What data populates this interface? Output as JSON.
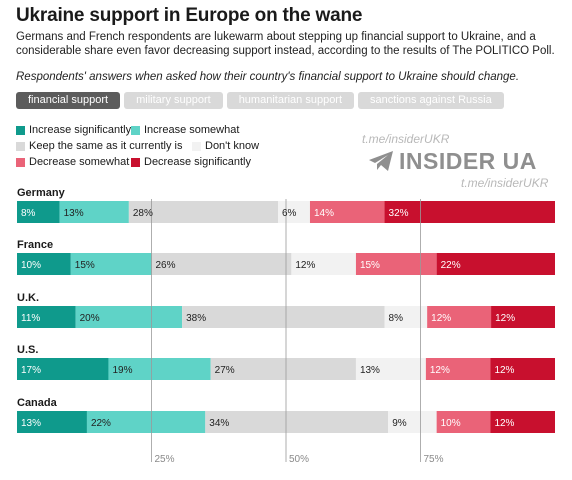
{
  "title": "Ukraine support in Europe on the wane",
  "subtitle": "Germans and French respondents are lukewarm about stepping up financial support to Ukraine, and a considerable share even favor decreasing support instead, according to the results of The POLITICO Poll.",
  "note": "Respondents' answers when asked how their country's financial support to Ukraine should change.",
  "tabs": [
    {
      "label": "financial support",
      "active": true
    },
    {
      "label": "military support",
      "active": false
    },
    {
      "label": "humanitarian support",
      "active": false
    },
    {
      "label": "sanctions against Russia",
      "active": false
    }
  ],
  "watermark": {
    "handle": "t.me/insiderUKR",
    "brand": "INSIDER UA",
    "icon": "telegram-icon"
  },
  "chart_data": {
    "type": "bar",
    "orientation": "horizontal",
    "stacked": true,
    "categories": [
      "Germany",
      "France",
      "U.K.",
      "U.S.",
      "Canada"
    ],
    "series": [
      {
        "name": "Increase significantly",
        "color": "#0f9a8c",
        "values": [
          8,
          10,
          11,
          17,
          13
        ]
      },
      {
        "name": "Increase somewhat",
        "color": "#5fd3c7",
        "values": [
          13,
          15,
          20,
          19,
          22
        ]
      },
      {
        "name": "Keep the same as it currently is",
        "color": "#d9d9d9",
        "values": [
          28,
          26,
          38,
          27,
          34
        ]
      },
      {
        "name": "Don't know",
        "color": "#f2f2f2",
        "values": [
          6,
          12,
          8,
          13,
          9
        ]
      },
      {
        "name": "Decrease somewhat",
        "color": "#ea6378",
        "values": [
          14,
          15,
          12,
          12,
          10
        ]
      },
      {
        "name": "Decrease significantly",
        "color": "#c8102e",
        "values": [
          32,
          22,
          12,
          12,
          12
        ]
      }
    ],
    "labels": [
      [
        "8%",
        "13%",
        "28%",
        "6%",
        "14%",
        "32%"
      ],
      [
        "10%",
        "15%",
        "26%",
        "12%",
        "15%",
        "22%"
      ],
      [
        "11%",
        "20%",
        "38%",
        "8%",
        "12%",
        "12%"
      ],
      [
        "17%",
        "19%",
        "27%",
        "13%",
        "12%",
        "12%"
      ],
      [
        "13%",
        "22%",
        "34%",
        "9%",
        "10%",
        "12%"
      ]
    ],
    "xlim": [
      0,
      100
    ],
    "reference_lines": [
      25,
      50,
      75
    ],
    "reference_labels": [
      "25%",
      "50%",
      "75%"
    ],
    "legend_position": "top-left"
  }
}
